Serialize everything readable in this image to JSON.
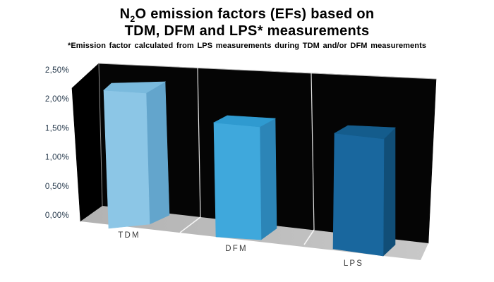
{
  "header": {
    "title_pre": "N",
    "title_sub": "2",
    "title_post": "O emission factors (EFs) based on",
    "title_line2": "TDM, DFM and LPS* measurements",
    "subtitle": "*Emission factor calculated from LPS measurements during TDM and/or DFM measurements"
  },
  "chart_data": {
    "type": "bar",
    "projection": "3d-column",
    "title": "N₂O emission factors (EFs) based on TDM, DFM and LPS* measurements",
    "subtitle": "*Emission factor calculated from LPS measurements during TDM and/or DFM measurements",
    "categories": [
      "TDM",
      "DFM",
      "LPS"
    ],
    "values": [
      2.1,
      1.6,
      1.45
    ],
    "values_unit": "%",
    "ylim": [
      0,
      2.5
    ],
    "y_ticks_top_down": [
      "2,50%",
      "2,00%",
      "1,50%",
      "1,00%",
      "0,50%",
      "0,00%"
    ],
    "grid": false,
    "legend": false,
    "colors": {
      "bars": [
        {
          "front": "#8CC6E6",
          "top": "#7ABADD",
          "side": "#63A5CC"
        },
        {
          "front": "#3FA8DC",
          "top": "#2F9AD0",
          "side": "#2C85B7"
        },
        {
          "front": "#19679E",
          "top": "#145C8C",
          "side": "#114E77"
        }
      ],
      "back_wall": "#050505",
      "left_wall": "#000000",
      "floor_left": "#b2b2b2",
      "floor_right": "#c8c8c8",
      "wall_separator": "#e3e3e3",
      "floor_separator": "#f5f5f5",
      "wall_corner": "#8f8f8f",
      "wall_top_edge": "#b0b0b0",
      "tick_label": "#24374a",
      "category_label": "#3a3a3a",
      "title": "#000000"
    }
  }
}
